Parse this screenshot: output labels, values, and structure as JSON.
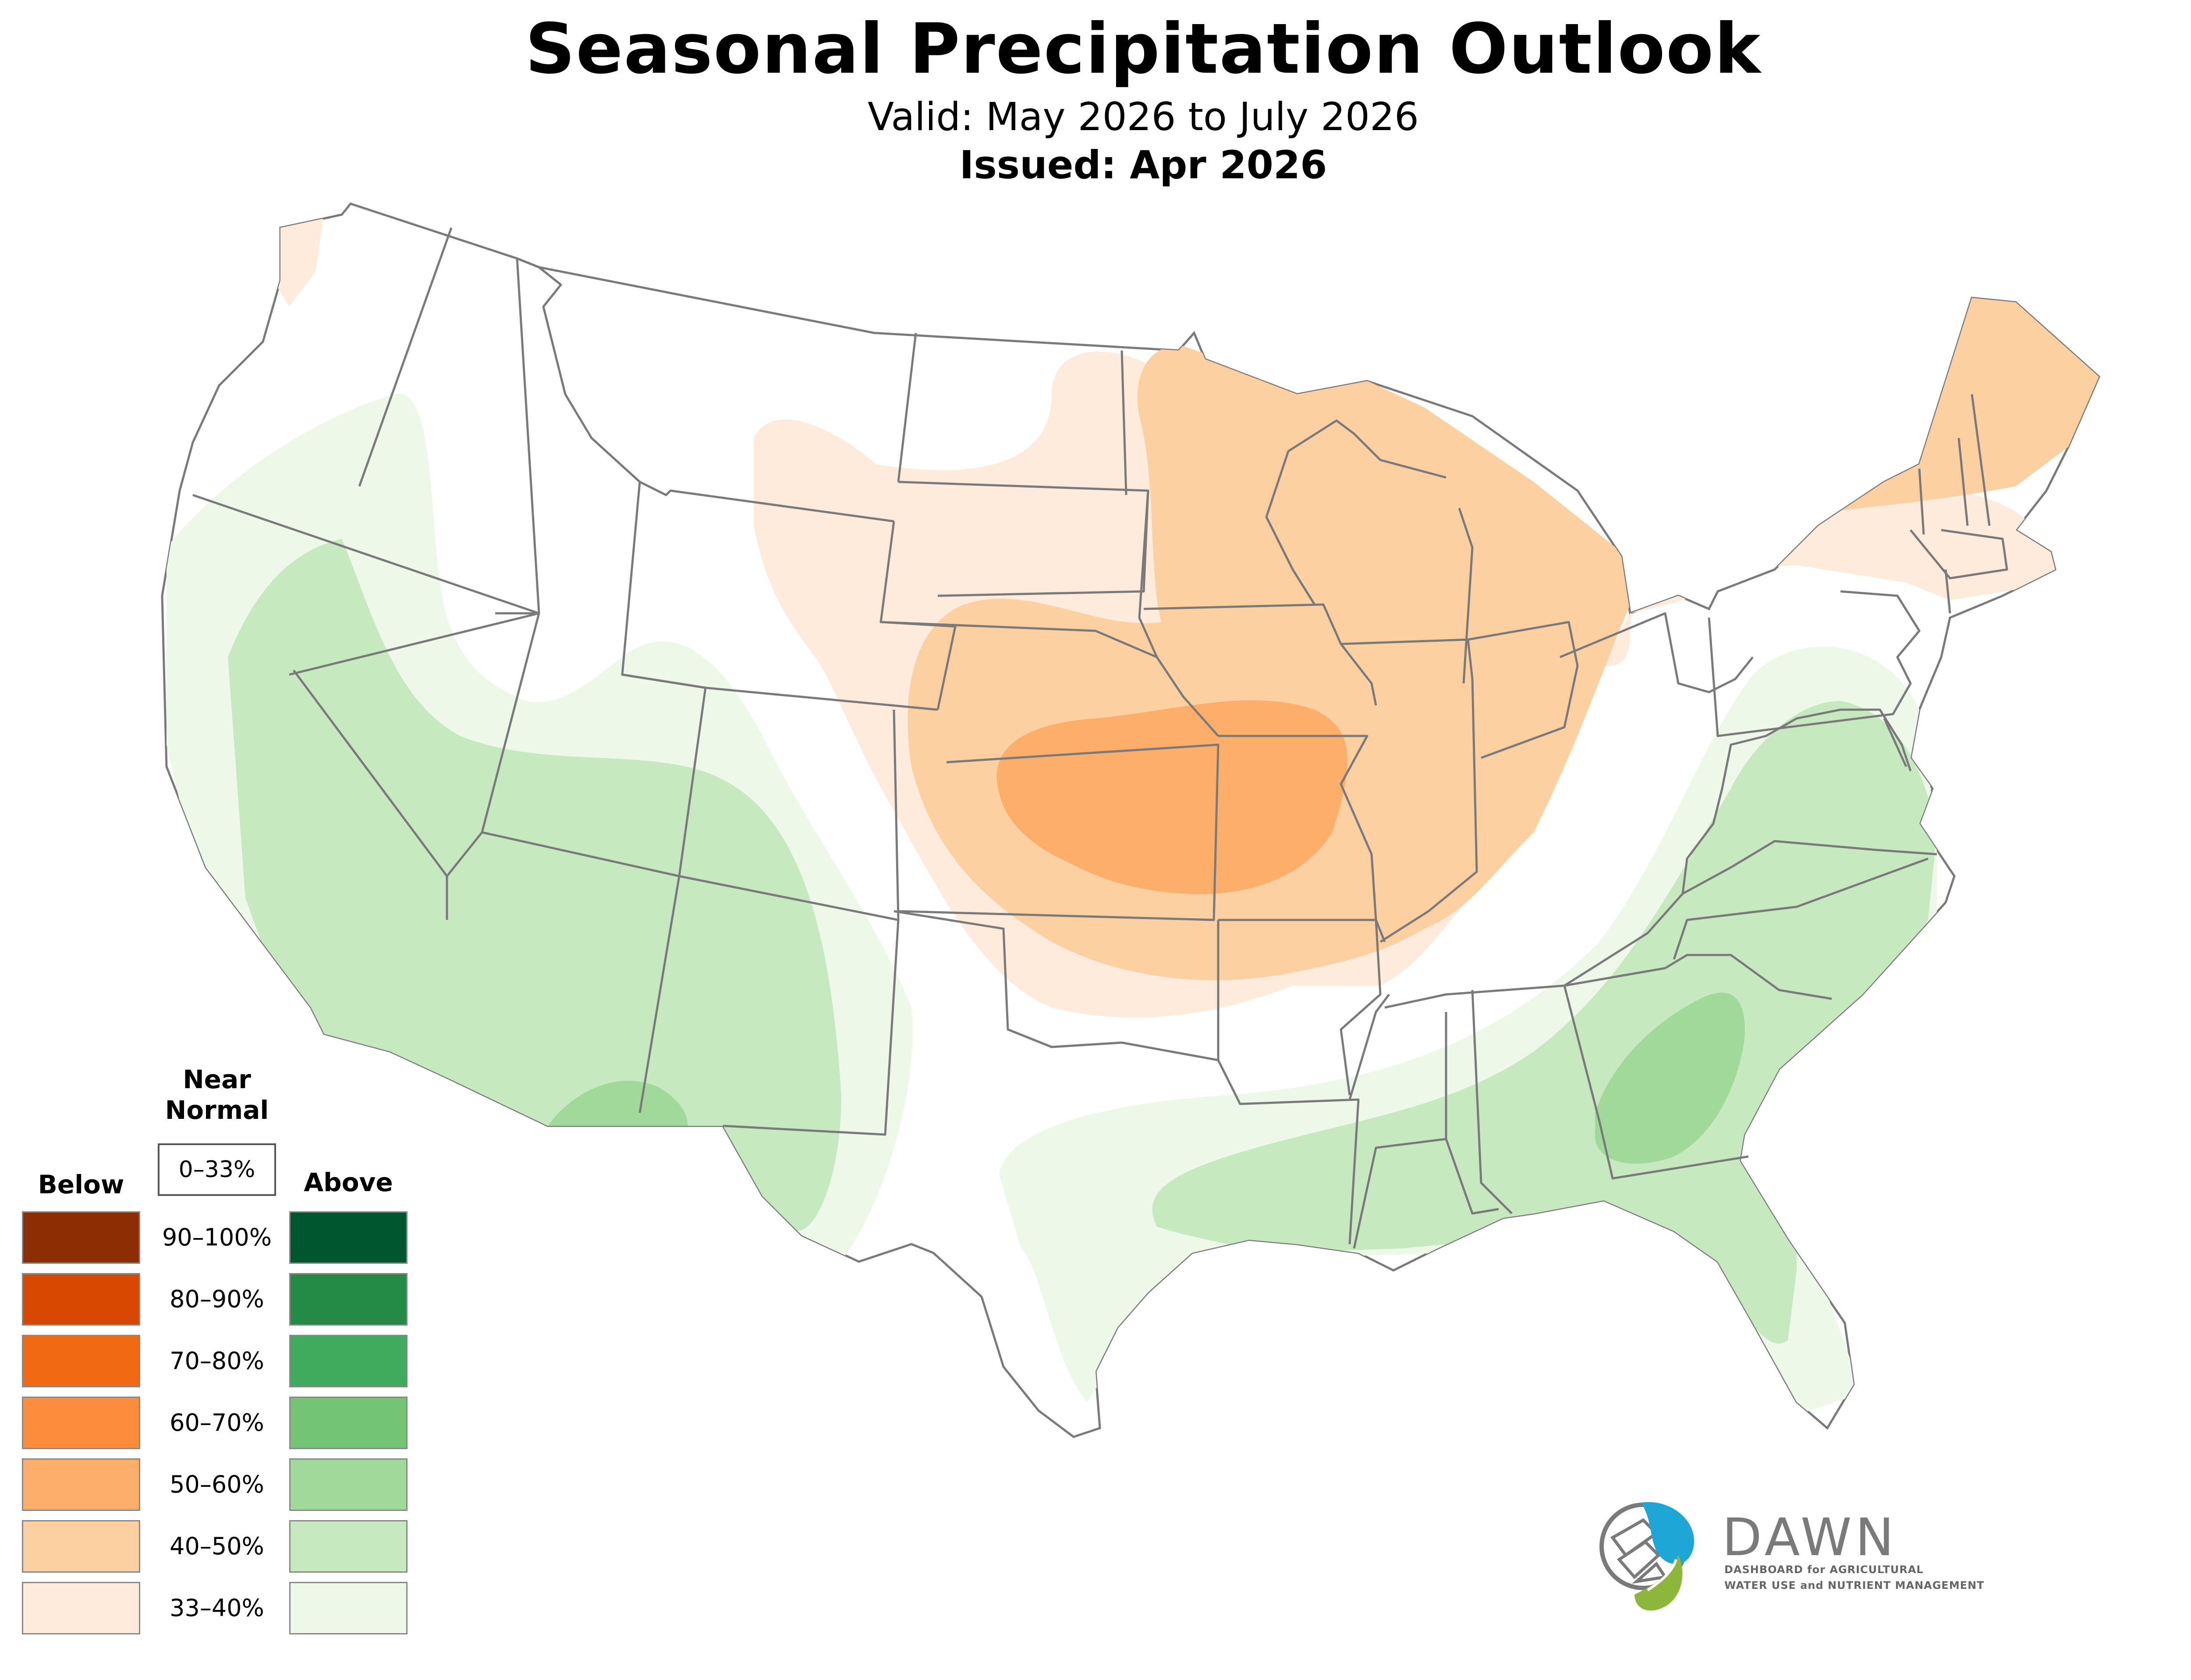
{
  "header": {
    "title": "Seasonal Precipitation Outlook",
    "valid": "Valid: May 2026 to July 2026",
    "issued": "Issued: Apr 2026"
  },
  "legend": {
    "below_label": "Below",
    "above_label": "Above",
    "near_normal_line1": "Near",
    "near_normal_line2": "Normal",
    "near_normal_range": "0–33%",
    "ranges": [
      "90–100%",
      "80–90%",
      "70–80%",
      "60–70%",
      "50–60%",
      "40–50%",
      "33–40%"
    ],
    "below_colors": [
      "#8c2d04",
      "#d94801",
      "#f16913",
      "#fd8d3c",
      "#fdae6b",
      "#fdd0a2",
      "#feebdb"
    ],
    "above_colors": [
      "#00562e",
      "#238b45",
      "#41ab5d",
      "#74c476",
      "#a1d99b",
      "#c7e9c0",
      "#edf8e9"
    ]
  },
  "logo": {
    "name": "DAWN",
    "tagline_line1": "DASHBOARD for AGRICULTURAL",
    "tagline_line2": "WATER USE and NUTRIENT MANAGEMENT",
    "colors": {
      "blue": "#1ea7d6",
      "green": "#8db63c",
      "gray": "#7a7a7a"
    }
  }
}
